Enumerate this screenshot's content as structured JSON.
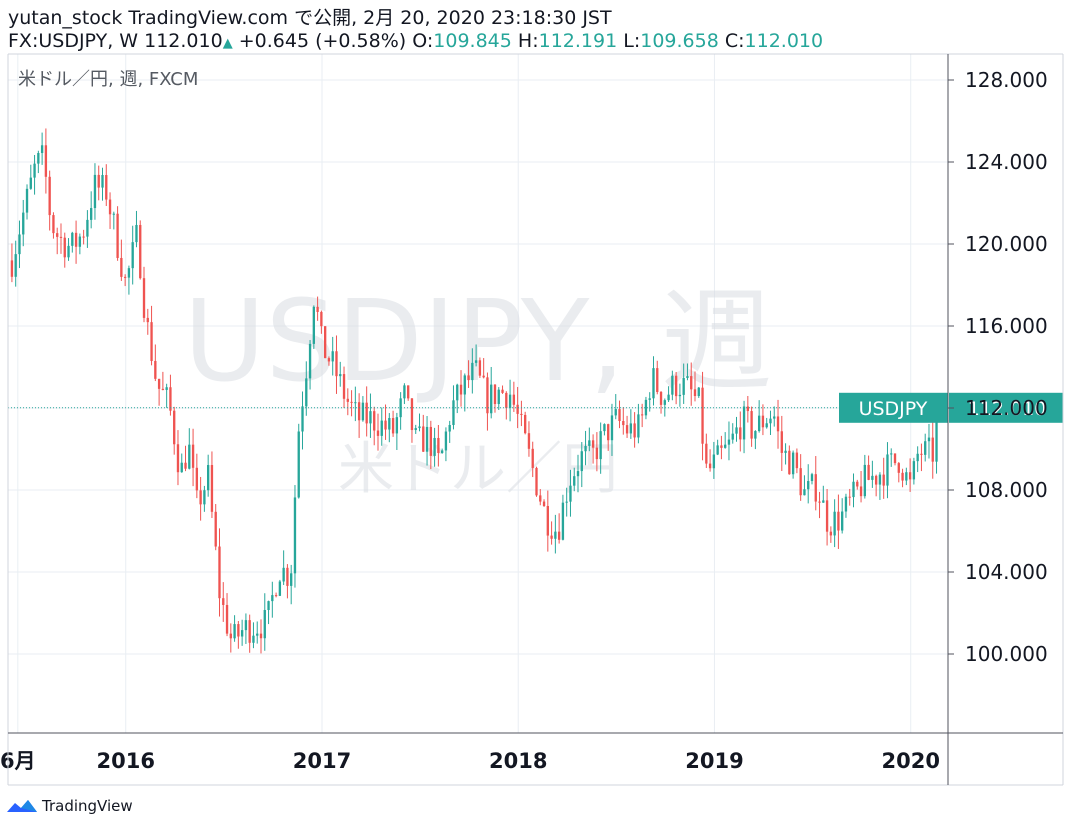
{
  "header": {
    "line1": "yutan_stock TradingView.com で公開, 2月 20, 2020 23:18:30 JST",
    "symbol": "FX:USDJPY, W",
    "last": "112.010",
    "change": "+0.645 (+0.58%)",
    "o_label": "O:",
    "o_value": "109.845",
    "h_label": "H:",
    "h_value": "112.191",
    "l_label": "L:",
    "l_value": "109.658",
    "c_label": "C:",
    "c_value": "112.010"
  },
  "legend_text": "米ドル／円, 週, FXCM",
  "watermark": {
    "main": "USDJPY, 週",
    "sub": "米ドル／円"
  },
  "price_label": {
    "symbol": "USDJPY",
    "value": "112.010"
  },
  "footer": {
    "brand": "TradingView",
    "logo_icon": "tradingview-logo-icon"
  },
  "colors": {
    "up": "#26a69a",
    "down": "#ef5350",
    "grid": "#e9eef3",
    "axis_text": "#131722"
  },
  "chart_data": {
    "type": "candlestick",
    "title": "米ドル／円, 週, FXCM",
    "timeframe": "weekly",
    "ylim": [
      96.0,
      130.0
    ],
    "y_ticks": [
      "128.000",
      "124.000",
      "120.000",
      "116.000",
      "112.000",
      "108.000",
      "104.000",
      "100.000"
    ],
    "y_tick_values": [
      128,
      124,
      120,
      116,
      112,
      108,
      104,
      100
    ],
    "x_ticks": [
      {
        "label": "6月",
        "year": 2015.45
      },
      {
        "label": "2016",
        "year": 2016.0
      },
      {
        "label": "2017",
        "year": 2017.0
      },
      {
        "label": "2018",
        "year": 2018.0
      },
      {
        "label": "2019",
        "year": 2019.0
      },
      {
        "label": "2020",
        "year": 2020.0
      }
    ],
    "x_range_years": [
      2015.4,
      2020.19
    ],
    "grid": true,
    "last_price": 112.01,
    "anchors": [
      [
        2015.42,
        119.2
      ],
      [
        2015.46,
        120.8
      ],
      [
        2015.5,
        122.3
      ],
      [
        2015.54,
        123.8
      ],
      [
        2015.58,
        124.2
      ],
      [
        2015.62,
        121.0
      ],
      [
        2015.66,
        120.3
      ],
      [
        2015.72,
        119.8
      ],
      [
        2015.78,
        120.5
      ],
      [
        2015.84,
        122.8
      ],
      [
        2015.9,
        122.6
      ],
      [
        2015.95,
        120.4
      ],
      [
        2016.0,
        118.0
      ],
      [
        2016.06,
        120.5
      ],
      [
        2016.1,
        116.5
      ],
      [
        2016.16,
        113.1
      ],
      [
        2016.22,
        112.2
      ],
      [
        2016.28,
        108.8
      ],
      [
        2016.32,
        110.2
      ],
      [
        2016.36,
        107.2
      ],
      [
        2016.42,
        108.6
      ],
      [
        2016.48,
        102.8
      ],
      [
        2016.54,
        100.6
      ],
      [
        2016.6,
        101.2
      ],
      [
        2016.66,
        101.4
      ],
      [
        2016.72,
        101.5
      ],
      [
        2016.78,
        104.2
      ],
      [
        2016.84,
        103.8
      ],
      [
        2016.88,
        110.9
      ],
      [
        2016.92,
        114.0
      ],
      [
        2016.96,
        117.6
      ],
      [
        2017.0,
        115.0
      ],
      [
        2017.06,
        114.0
      ],
      [
        2017.12,
        112.5
      ],
      [
        2017.18,
        111.5
      ],
      [
        2017.24,
        111.5
      ],
      [
        2017.3,
        111.2
      ],
      [
        2017.36,
        110.8
      ],
      [
        2017.42,
        112.5
      ],
      [
        2017.48,
        110.3
      ],
      [
        2017.54,
        110.6
      ],
      [
        2017.6,
        109.2
      ],
      [
        2017.66,
        112.0
      ],
      [
        2017.72,
        113.0
      ],
      [
        2017.78,
        113.8
      ],
      [
        2017.84,
        112.4
      ],
      [
        2017.9,
        112.8
      ],
      [
        2017.96,
        112.7
      ],
      [
        2018.02,
        110.8
      ],
      [
        2018.08,
        108.8
      ],
      [
        2018.14,
        106.7
      ],
      [
        2018.2,
        106.0
      ],
      [
        2018.26,
        108.5
      ],
      [
        2018.32,
        109.6
      ],
      [
        2018.38,
        109.7
      ],
      [
        2018.44,
        110.7
      ],
      [
        2018.5,
        111.4
      ],
      [
        2018.56,
        110.9
      ],
      [
        2018.62,
        111.0
      ],
      [
        2018.68,
        113.5
      ],
      [
        2018.74,
        112.5
      ],
      [
        2018.8,
        113.2
      ],
      [
        2018.86,
        113.0
      ],
      [
        2018.92,
        112.2
      ],
      [
        2018.96,
        108.8
      ],
      [
        2019.02,
        109.5
      ],
      [
        2019.08,
        110.2
      ],
      [
        2019.14,
        111.4
      ],
      [
        2019.2,
        110.9
      ],
      [
        2019.26,
        111.5
      ],
      [
        2019.3,
        111.8
      ],
      [
        2019.34,
        109.9
      ],
      [
        2019.4,
        109.3
      ],
      [
        2019.46,
        107.8
      ],
      [
        2019.52,
        108.2
      ],
      [
        2019.58,
        106.4
      ],
      [
        2019.64,
        106.6
      ],
      [
        2019.7,
        107.5
      ],
      [
        2019.76,
        108.4
      ],
      [
        2019.82,
        108.7
      ],
      [
        2019.88,
        109.1
      ],
      [
        2019.94,
        109.5
      ],
      [
        2020.0,
        108.1
      ],
      [
        2020.04,
        109.9
      ],
      [
        2020.08,
        109.8
      ],
      [
        2020.12,
        109.8
      ],
      [
        2020.135,
        112.01
      ]
    ]
  }
}
